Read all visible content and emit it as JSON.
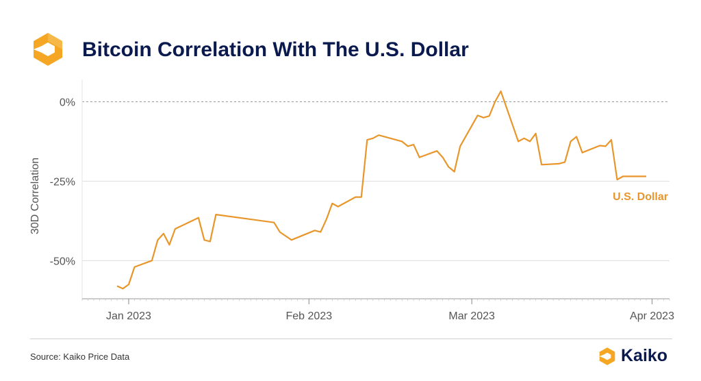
{
  "header": {
    "title": "Bitcoin Correlation With The U.S. Dollar",
    "logo_icon": "kaiko-hexagon-logo-icon"
  },
  "footer": {
    "source": "Source: Kaiko Price Data",
    "brand_name": "Kaiko",
    "brand_icon": "kaiko-logo-icon"
  },
  "colors": {
    "line": "#e8962a",
    "title": "#0b1a4e",
    "grid": "#dddddd",
    "zero_line": "#999999"
  },
  "chart_data": {
    "type": "line",
    "ylabel": "30D Correlation",
    "y_ticks": [
      {
        "value": 0,
        "label": "0%"
      },
      {
        "value": -25,
        "label": "-25%"
      },
      {
        "value": -50,
        "label": "-50%"
      }
    ],
    "x_ticks": [
      {
        "date": "2023-01-01",
        "label": "Jan 2023"
      },
      {
        "date": "2023-02-01",
        "label": "Feb 2023"
      },
      {
        "date": "2023-03-01",
        "label": "Mar 2023"
      },
      {
        "date": "2023-04-01",
        "label": "Apr 2023"
      }
    ],
    "xlim": [
      "2022-12-24",
      "2023-04-04"
    ],
    "ylim": [
      -62,
      7
    ],
    "zero_line": "dashed",
    "series": [
      {
        "name": "U.S. Dollar",
        "label_position": "right",
        "points": [
          {
            "x": "2022-12-30",
            "y": -58
          },
          {
            "x": "2022-12-31",
            "y": -58.8
          },
          {
            "x": "2023-01-01",
            "y": -57.5
          },
          {
            "x": "2023-01-02",
            "y": -52
          },
          {
            "x": "2023-01-05",
            "y": -50
          },
          {
            "x": "2023-01-06",
            "y": -43.5
          },
          {
            "x": "2023-01-07",
            "y": -41.5
          },
          {
            "x": "2023-01-08",
            "y": -45
          },
          {
            "x": "2023-01-09",
            "y": -40
          },
          {
            "x": "2023-01-13",
            "y": -36.5
          },
          {
            "x": "2023-01-14",
            "y": -43.5
          },
          {
            "x": "2023-01-15",
            "y": -44
          },
          {
            "x": "2023-01-16",
            "y": -35.5
          },
          {
            "x": "2023-01-26",
            "y": -38
          },
          {
            "x": "2023-01-27",
            "y": -41
          },
          {
            "x": "2023-01-29",
            "y": -43.5
          },
          {
            "x": "2023-02-02",
            "y": -40.5
          },
          {
            "x": "2023-02-03",
            "y": -41
          },
          {
            "x": "2023-02-04",
            "y": -37
          },
          {
            "x": "2023-02-05",
            "y": -32
          },
          {
            "x": "2023-02-06",
            "y": -33
          },
          {
            "x": "2023-02-09",
            "y": -30
          },
          {
            "x": "2023-02-10",
            "y": -30
          },
          {
            "x": "2023-02-11",
            "y": -12
          },
          {
            "x": "2023-02-12",
            "y": -11.5
          },
          {
            "x": "2023-02-13",
            "y": -10.5
          },
          {
            "x": "2023-02-17",
            "y": -12.5
          },
          {
            "x": "2023-02-18",
            "y": -14
          },
          {
            "x": "2023-02-19",
            "y": -13.5
          },
          {
            "x": "2023-02-20",
            "y": -17.5
          },
          {
            "x": "2023-02-23",
            "y": -15.5
          },
          {
            "x": "2023-02-24",
            "y": -17.5
          },
          {
            "x": "2023-02-25",
            "y": -20.5
          },
          {
            "x": "2023-02-26",
            "y": -22
          },
          {
            "x": "2023-02-27",
            "y": -14
          },
          {
            "x": "2023-03-02",
            "y": -4.3
          },
          {
            "x": "2023-03-03",
            "y": -5
          },
          {
            "x": "2023-03-04",
            "y": -4.5
          },
          {
            "x": "2023-03-05",
            "y": 0
          },
          {
            "x": "2023-03-06",
            "y": 3.3
          },
          {
            "x": "2023-03-09",
            "y": -12.5
          },
          {
            "x": "2023-03-10",
            "y": -11.5
          },
          {
            "x": "2023-03-11",
            "y": -12.5
          },
          {
            "x": "2023-03-12",
            "y": -10
          },
          {
            "x": "2023-03-13",
            "y": -19.8
          },
          {
            "x": "2023-03-16",
            "y": -19.5
          },
          {
            "x": "2023-03-17",
            "y": -19
          },
          {
            "x": "2023-03-18",
            "y": -12.5
          },
          {
            "x": "2023-03-19",
            "y": -11
          },
          {
            "x": "2023-03-20",
            "y": -16
          },
          {
            "x": "2023-03-23",
            "y": -13.8
          },
          {
            "x": "2023-03-24",
            "y": -14
          },
          {
            "x": "2023-03-25",
            "y": -12
          },
          {
            "x": "2023-03-26",
            "y": -24.5
          },
          {
            "x": "2023-03-27",
            "y": -23.5
          },
          {
            "x": "2023-03-31",
            "y": -23.5
          }
        ]
      }
    ]
  }
}
